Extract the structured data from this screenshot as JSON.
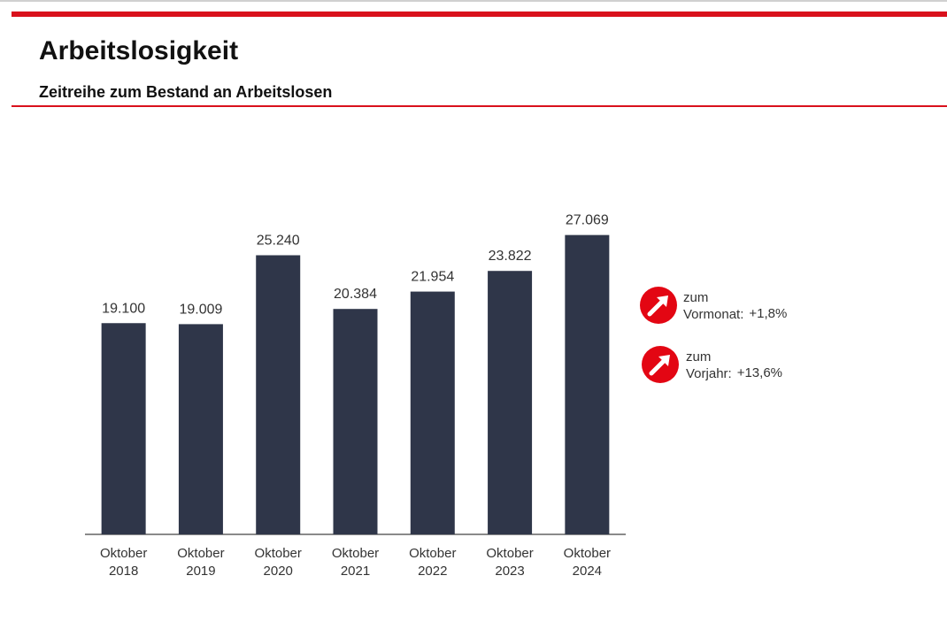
{
  "chart_data": {
    "type": "bar",
    "title": "Arbeitslosigkeit",
    "subtitle": "Zeitreihe zum Bestand an Arbeitslosen",
    "categories": [
      "Oktober 2018",
      "Oktober 2019",
      "Oktober 2020",
      "Oktober 2021",
      "Oktober 2022",
      "Oktober 2023",
      "Oktober 2024"
    ],
    "values": [
      19100,
      19009,
      25240,
      20384,
      21954,
      23822,
      27069
    ],
    "value_labels": [
      "19.100",
      "19.009",
      "25.240",
      "20.384",
      "21.954",
      "23.822",
      "27.069"
    ],
    "color": "#2f3649",
    "ylim": [
      0,
      28000
    ],
    "indicators": [
      {
        "line1": "zum",
        "line2": "Vormonat:",
        "change": "+1,8%"
      },
      {
        "line1": "zum",
        "line2": "Vorjahr:",
        "change": "+13,6%"
      }
    ]
  }
}
